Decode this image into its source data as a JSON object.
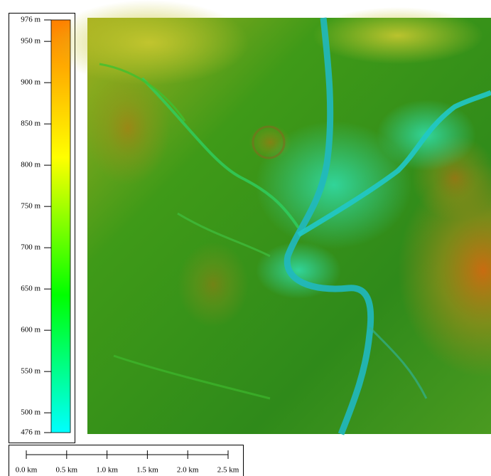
{
  "map": {
    "colorbar": {
      "lim": [
        476,
        976
      ],
      "colors": [
        "#00ffff",
        "#00ff00",
        "#ffff00",
        "#ff7f00"
      ],
      "ticks": [
        {
          "value": 976,
          "label": "976 m"
        },
        {
          "value": 950,
          "label": "950 m"
        },
        {
          "value": 900,
          "label": "900 m"
        },
        {
          "value": 850,
          "label": "850 m"
        },
        {
          "value": 800,
          "label": "800 m"
        },
        {
          "value": 750,
          "label": "750 m"
        },
        {
          "value": 700,
          "label": "700 m"
        },
        {
          "value": 650,
          "label": "650 m"
        },
        {
          "value": 600,
          "label": "600 m"
        },
        {
          "value": 550,
          "label": "550 m"
        },
        {
          "value": 500,
          "label": "500 m"
        },
        {
          "value": 476,
          "label": "476 m"
        }
      ]
    },
    "scale_bar": {
      "lim": [
        0,
        2.5
      ],
      "ticks": [
        {
          "value": 0,
          "label": "0.0 km"
        },
        {
          "value": 0.5,
          "label": "0.5 km"
        },
        {
          "value": 1,
          "label": "1.0 km"
        },
        {
          "value": 1.5,
          "label": "1.5 km"
        },
        {
          "value": 2,
          "label": "2.0 km"
        },
        {
          "value": 2.5,
          "label": "2.5 km"
        }
      ]
    }
  }
}
